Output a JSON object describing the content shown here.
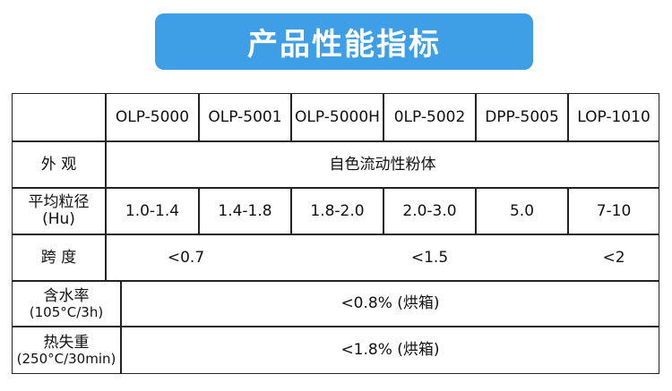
{
  "header": {
    "title": "产品性能指标"
  },
  "table": {
    "columns": [
      "OLP-5000",
      "OLP-5001",
      "OLP-5000H",
      "0LP-5002",
      "DPP-5005",
      "LOP-1010"
    ],
    "rows": [
      {
        "label": [
          "外 观"
        ],
        "values": [
          "自色流动性粉体"
        ]
      },
      {
        "label": [
          "平均粒径",
          "(Hu)"
        ],
        "values": [
          "1.0-1.4",
          "1.4-1.8",
          "1.8-2.0",
          "2.0-3.0",
          "5.0",
          "7-10"
        ]
      },
      {
        "label": [
          "跨 度"
        ],
        "values": [
          "<0.7",
          "<1.5",
          "<2"
        ]
      },
      {
        "label": [
          "含水率",
          "(105°C/3h)"
        ],
        "values": [
          "<0.8% (烘箱)"
        ]
      },
      {
        "label": [
          "热失重",
          "(250°C/30min)"
        ],
        "values": [
          "<1.8% (烘箱)"
        ]
      }
    ]
  }
}
